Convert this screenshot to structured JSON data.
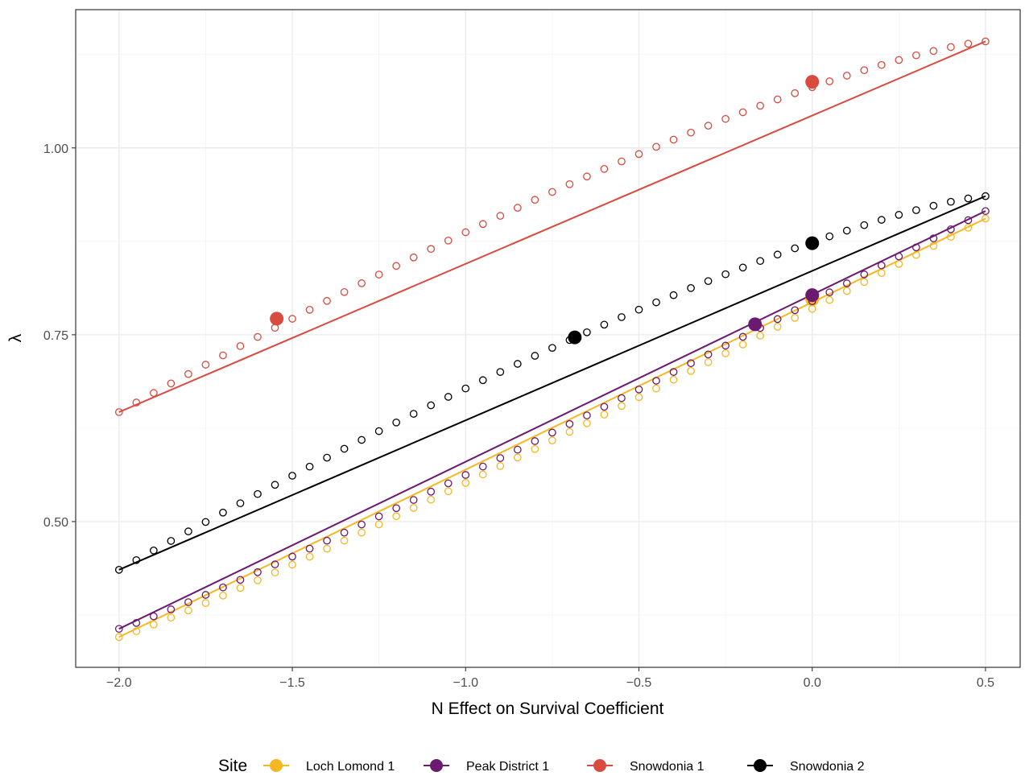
{
  "chart_data": {
    "type": "line",
    "xlabel": "N Effect on Survival Coefficient",
    "ylabel": "λ",
    "xlim": [
      -2.125,
      0.6
    ],
    "ylim": [
      0.305,
      1.185
    ],
    "x_ticks": [
      -2.0,
      -1.5,
      -1.0,
      -0.5,
      0.0,
      0.5
    ],
    "x_tick_labels": [
      "−2.0",
      "−1.5",
      "−1.0",
      "−0.5",
      "0.0",
      "0.5"
    ],
    "y_ticks": [
      0.5,
      0.75,
      1.0
    ],
    "y_tick_labels": [
      "0.50",
      "0.75",
      "1.00"
    ],
    "grid": true,
    "legend_position": "bottom",
    "legend_title": "Site",
    "point_step": 0.05,
    "series": [
      {
        "name": "Loch Lomond 1",
        "color": "#F5B722",
        "points_start": 0.3455,
        "points_end": 0.9055,
        "points_shape": "convex",
        "line_start": 0.3455,
        "line_end": 0.9055,
        "highlight": [
          {
            "x": 0.0,
            "y": 0.7975
          }
        ]
      },
      {
        "name": "Peak District 1",
        "color": "#6A1A70",
        "points_start": 0.3565,
        "points_end": 0.9155,
        "points_shape": "convex",
        "line_start": 0.3565,
        "line_end": 0.9155,
        "highlight": [
          {
            "x": -0.165,
            "y": 0.764
          },
          {
            "x": 0.0,
            "y": 0.803
          }
        ]
      },
      {
        "name": "Snowdonia 1",
        "color": "#D94A3F",
        "points_start": 0.6465,
        "points_end": 1.1425,
        "points_shape": "concave",
        "line_start": 0.6465,
        "line_end": 1.1425,
        "highlight": [
          {
            "x": -1.545,
            "y": 0.7715
          },
          {
            "x": 0.0,
            "y": 1.0885
          }
        ]
      },
      {
        "name": "Snowdonia 2",
        "color": "#000000",
        "points_start": 0.4355,
        "points_end": 0.9355,
        "points_shape": "concave",
        "line_start": 0.4355,
        "line_end": 0.9355,
        "highlight": [
          {
            "x": -0.685,
            "y": 0.7465
          },
          {
            "x": 0.0,
            "y": 0.8725
          }
        ]
      }
    ]
  }
}
